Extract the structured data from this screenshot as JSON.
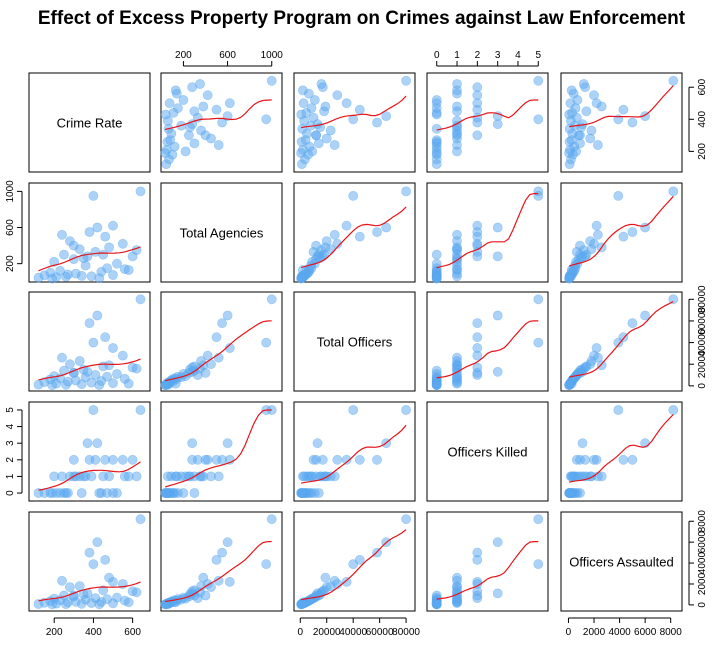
{
  "title": "Effect of Excess Property Program on Crimes against Law Enforcement",
  "colors": {
    "point": "#5aa8f0",
    "smooth": "#e8141a"
  },
  "chart_data": {
    "type": "scatter",
    "variables": [
      {
        "key": "cr",
        "label": "Crime Rate",
        "lim": [
          90,
          670
        ],
        "ticks": [
          200,
          400,
          600
        ],
        "tick_labels": [
          "200",
          "400",
          "600"
        ]
      },
      {
        "key": "ag",
        "label": "Total Agencies",
        "lim": [
          30,
          1060
        ],
        "ticks": [
          200,
          600,
          1000
        ],
        "tick_labels": [
          "200",
          "600",
          "1000"
        ]
      },
      {
        "key": "of",
        "label": "Total Officers",
        "lim": [
          -2000,
          84000
        ],
        "ticks": [
          0,
          20000,
          40000,
          60000,
          80000
        ],
        "tick_labels": [
          "0",
          "20000",
          "40000",
          "60000",
          "80000"
        ]
      },
      {
        "key": "ki",
        "label": "Officers Killed",
        "lim": [
          -0.3,
          5.3
        ],
        "ticks": [
          0,
          1,
          2,
          3,
          4,
          5
        ],
        "tick_labels": [
          "0",
          "1",
          "2",
          "3",
          "4",
          "5"
        ]
      },
      {
        "key": "as",
        "label": "Officers Assaulted",
        "lim": [
          -300,
          8600
        ],
        "ticks": [
          0,
          2000,
          4000,
          6000,
          8000
        ],
        "tick_labels": [
          "0",
          "2000",
          "4000",
          "6000",
          "8000"
        ]
      }
    ],
    "observations": [
      {
        "cr": 640,
        "ag": 1000,
        "of": 80000,
        "ki": 5,
        "as": 8200
      },
      {
        "cr": 400,
        "ag": 950,
        "of": 40000,
        "ki": 5,
        "as": 3900
      },
      {
        "cr": 420,
        "ag": 600,
        "of": 65000,
        "ki": 3,
        "as": 6000
      },
      {
        "cr": 380,
        "ag": 550,
        "of": 58000,
        "ki": 2,
        "as": 5000
      },
      {
        "cr": 460,
        "ag": 500,
        "of": 45000,
        "ki": 2,
        "as": 4300
      },
      {
        "cr": 500,
        "ag": 620,
        "of": 35000,
        "ki": 2,
        "as": 2200
      },
      {
        "cr": 550,
        "ag": 420,
        "of": 28000,
        "ki": 2,
        "as": 2000
      },
      {
        "cr": 330,
        "ag": 360,
        "of": 23000,
        "ki": 1,
        "as": 1800
      },
      {
        "cr": 280,
        "ag": 450,
        "of": 20000,
        "ki": 1,
        "as": 1700
      },
      {
        "cr": 480,
        "ag": 380,
        "of": 19000,
        "ki": 1,
        "as": 2600
      },
      {
        "cr": 450,
        "ag": 300,
        "of": 18000,
        "ki": 1,
        "as": 1400
      },
      {
        "cr": 600,
        "ag": 280,
        "of": 17000,
        "ki": 2,
        "as": 1300
      },
      {
        "cr": 620,
        "ag": 350,
        "of": 16000,
        "ki": 1,
        "as": 1200
      },
      {
        "cr": 350,
        "ag": 260,
        "of": 15000,
        "ki": 1,
        "as": 1000
      },
      {
        "cr": 250,
        "ag": 300,
        "of": 14000,
        "ki": 0,
        "as": 900
      },
      {
        "cr": 300,
        "ag": 250,
        "of": 12000,
        "ki": 1,
        "as": 800
      },
      {
        "cr": 520,
        "ag": 200,
        "of": 11000,
        "ki": 0,
        "as": 700
      },
      {
        "cr": 410,
        "ag": 330,
        "of": 10000,
        "ki": 2,
        "as": 650
      },
      {
        "cr": 200,
        "ag": 220,
        "of": 9000,
        "ki": 1,
        "as": 600
      },
      {
        "cr": 470,
        "ag": 150,
        "of": 8500,
        "ki": 0,
        "as": 550
      },
      {
        "cr": 360,
        "ag": 180,
        "of": 8000,
        "ki": 1,
        "as": 500
      },
      {
        "cr": 230,
        "ag": 120,
        "of": 7000,
        "ki": 0,
        "as": 450
      },
      {
        "cr": 560,
        "ag": 140,
        "of": 6500,
        "ki": 1,
        "as": 400
      },
      {
        "cr": 180,
        "ag": 100,
        "of": 6000,
        "ki": 0,
        "as": 350
      },
      {
        "cr": 310,
        "ag": 90,
        "of": 5000,
        "ki": 1,
        "as": 300
      },
      {
        "cr": 440,
        "ag": 110,
        "of": 4500,
        "ki": 0,
        "as": 280
      },
      {
        "cr": 270,
        "ag": 80,
        "of": 4000,
        "ki": 0,
        "as": 250
      },
      {
        "cr": 150,
        "ag": 70,
        "of": 3500,
        "ki": 0,
        "as": 200
      },
      {
        "cr": 390,
        "ag": 60,
        "of": 3000,
        "ki": 1,
        "as": 180
      },
      {
        "cr": 500,
        "ag": 75,
        "of": 2500,
        "ki": 0,
        "as": 150
      },
      {
        "cr": 210,
        "ag": 50,
        "of": 2000,
        "ki": 0,
        "as": 120
      },
      {
        "cr": 340,
        "ag": 65,
        "of": 1500,
        "ki": 0,
        "as": 100
      },
      {
        "cr": 120,
        "ag": 45,
        "of": 1200,
        "ki": 0,
        "as": 90
      },
      {
        "cr": 260,
        "ag": 55,
        "of": 1000,
        "ki": 0,
        "as": 80
      },
      {
        "cr": 430,
        "ag": 40,
        "of": 800,
        "ki": 0,
        "as": 60
      },
      {
        "cr": 190,
        "ag": 35,
        "of": 600,
        "ki": 0,
        "as": 50
      },
      {
        "cr": 580,
        "ag": 130,
        "of": 2000,
        "ki": 1,
        "as": 250
      },
      {
        "cr": 300,
        "ag": 400,
        "of": 12000,
        "ki": 2,
        "as": 900
      },
      {
        "cr": 240,
        "ag": 520,
        "of": 26000,
        "ki": 1,
        "as": 2300
      },
      {
        "cr": 370,
        "ag": 280,
        "of": 13000,
        "ki": 3,
        "as": 1100
      }
    ]
  }
}
